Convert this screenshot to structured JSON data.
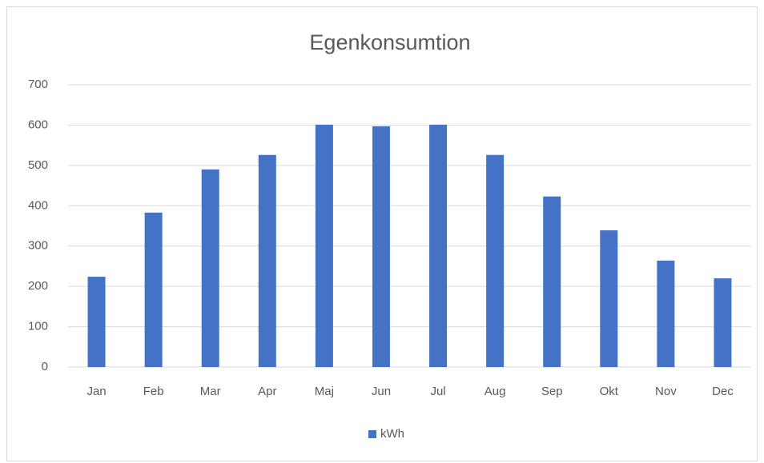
{
  "chart_data": {
    "type": "bar",
    "title": "Egenkonsumtion",
    "categories": [
      "Jan",
      "Feb",
      "Mar",
      "Apr",
      "Maj",
      "Jun",
      "Jul",
      "Aug",
      "Sep",
      "Okt",
      "Nov",
      "Dec"
    ],
    "series": [
      {
        "name": "kWh",
        "color": "#4472c4",
        "values": [
          224,
          383,
          490,
          526,
          601,
          597,
          601,
          526,
          423,
          339,
          264,
          220
        ]
      }
    ],
    "ylim": [
      0,
      700
    ],
    "yticks": [
      0,
      100,
      200,
      300,
      400,
      500,
      600,
      700
    ],
    "grid": true,
    "legend": "bottom"
  }
}
